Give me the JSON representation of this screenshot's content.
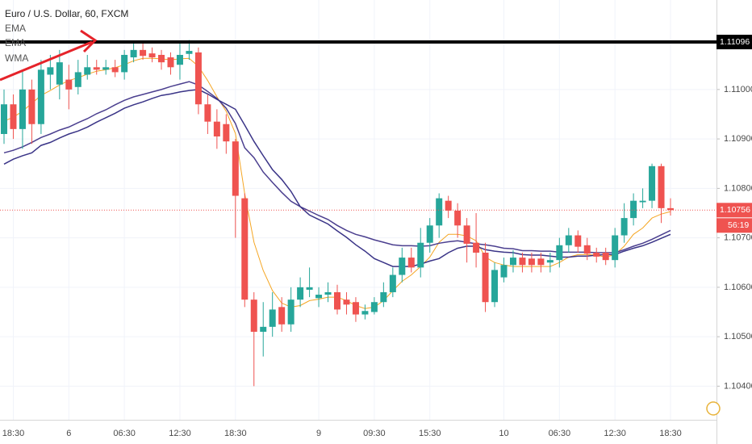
{
  "chart_data": {
    "type": "candlestick",
    "title": "Euro / U.S. Dollar, 60, FXCM",
    "categories": [
      null,
      "18:30",
      null,
      null,
      null,
      null,
      null,
      "6",
      null,
      null,
      null,
      null,
      null,
      "06:30",
      null,
      null,
      null,
      null,
      null,
      "12:30",
      null,
      null,
      null,
      null,
      null,
      "18:30",
      null,
      null,
      null,
      null,
      null,
      null,
      null,
      null,
      "9",
      null,
      null,
      null,
      null,
      null,
      "09:30",
      null,
      null,
      null,
      null,
      null,
      "15:30",
      null,
      null,
      null,
      null,
      null,
      null,
      null,
      "10",
      null,
      null,
      null,
      null,
      null,
      "06:30",
      null,
      null,
      null,
      null,
      null,
      "12:30",
      null,
      null,
      null,
      null,
      null,
      "18:30"
    ],
    "open": [
      1.1091,
      1.1097,
      1.1092,
      1.11,
      1.1093,
      1.1103,
      1.1101,
      1.1102,
      1.11005,
      1.1103,
      1.11045,
      1.1104,
      1.11045,
      1.11035,
      1.11065,
      1.1108,
      1.11073,
      1.1107,
      1.11065,
      1.1105,
      1.11072,
      1.11075,
      1.1097,
      1.10935,
      1.1093,
      1.10895,
      1.1078,
      1.10575,
      1.1051,
      1.1052,
      1.1056,
      1.10525,
      1.10575,
      1.10595,
      1.10578,
      1.10585,
      1.1059,
      1.10575,
      1.1057,
      1.10545,
      1.1055,
      1.1057,
      1.1059,
      1.10625,
      1.1066,
      1.1064,
      1.1069,
      1.10725,
      1.10775,
      1.10755,
      1.10725,
      1.1069,
      1.1067,
      1.1057,
      1.1062,
      1.10645,
      1.1066,
      1.10658,
      1.10658,
      1.1065,
      1.10655,
      1.10685,
      1.10705,
      1.10685,
      1.1067,
      1.1067,
      1.10655,
      1.10705,
      1.1074,
      1.10772,
      1.10775,
      1.10845,
      1.1076
    ],
    "high": [
      1.11,
      1.1099,
      1.1104,
      1.1102,
      1.1106,
      1.1107,
      1.1108,
      1.1105,
      1.1106,
      1.1107,
      1.1106,
      1.1106,
      1.1106,
      1.1108,
      1.11095,
      1.11095,
      1.11085,
      1.1108,
      1.11075,
      1.11095,
      1.111,
      1.11085,
      1.1099,
      1.1096,
      1.1095,
      1.109,
      1.1079,
      1.1059,
      1.1057,
      1.1059,
      1.1058,
      1.106,
      1.1062,
      1.1064,
      1.106,
      1.1061,
      1.10605,
      1.1059,
      1.1058,
      1.10565,
      1.1058,
      1.1061,
      1.1064,
      1.1068,
      1.1068,
      1.1072,
      1.1074,
      1.1079,
      1.10785,
      1.1077,
      1.1074,
      1.1075,
      1.1069,
      1.1065,
      1.1066,
      1.10675,
      1.1067,
      1.1067,
      1.1067,
      1.1067,
      1.107,
      1.1072,
      1.10715,
      1.107,
      1.1068,
      1.1068,
      1.1072,
      1.1077,
      1.1079,
      1.108,
      1.1085,
      1.1085,
      1.1078
    ],
    "low": [
      1.1089,
      1.109,
      1.1088,
      1.1089,
      1.1091,
      1.11,
      1.1098,
      1.1096,
      1.1099,
      1.1102,
      1.1103,
      1.1103,
      1.11025,
      1.1102,
      1.11055,
      1.1106,
      1.11055,
      1.1104,
      1.1103,
      1.1102,
      1.1106,
      1.1095,
      1.1091,
      1.1088,
      1.1087,
      1.107,
      1.1056,
      1.104,
      1.1046,
      1.105,
      1.1051,
      1.1051,
      1.1056,
      1.1058,
      1.1056,
      1.1057,
      1.10545,
      1.10545,
      1.1053,
      1.10535,
      1.10545,
      1.1056,
      1.1058,
      1.1061,
      1.1063,
      1.1062,
      1.1067,
      1.107,
      1.1074,
      1.107,
      1.1065,
      1.1064,
      1.1055,
      1.1056,
      1.1061,
      1.1063,
      1.1063,
      1.1063,
      1.1063,
      1.1063,
      1.1064,
      1.1067,
      1.1067,
      1.10655,
      1.1065,
      1.10645,
      1.1064,
      1.1069,
      1.10725,
      1.1076,
      1.1076,
      1.1073,
      1.10745
    ],
    "close": [
      1.1097,
      1.1092,
      1.11,
      1.1093,
      1.1104,
      1.11045,
      1.11055,
      1.11,
      1.11035,
      1.11045,
      1.1104,
      1.11045,
      1.11035,
      1.1107,
      1.1108,
      1.11068,
      1.11065,
      1.11055,
      1.11045,
      1.1107,
      1.11078,
      1.1097,
      1.10935,
      1.10905,
      1.10895,
      1.10785,
      1.10575,
      1.1051,
      1.1052,
      1.10555,
      1.10525,
      1.10575,
      1.106,
      1.106,
      1.10585,
      1.1059,
      1.10555,
      1.10565,
      1.10545,
      1.10552,
      1.1057,
      1.1059,
      1.10625,
      1.1066,
      1.1064,
      1.1069,
      1.10725,
      1.1078,
      1.10755,
      1.10725,
      1.10688,
      1.1067,
      1.1057,
      1.10635,
      1.10645,
      1.1066,
      1.10645,
      1.10645,
      1.10645,
      1.10655,
      1.10685,
      1.10705,
      1.10682,
      1.10668,
      1.10662,
      1.10655,
      1.10705,
      1.1074,
      1.10775,
      1.10775,
      1.10845,
      1.1076,
      1.10756
    ],
    "up_color": "#26a69a",
    "down_color": "#ef5350",
    "series": [
      {
        "name": "EMA",
        "color": "#f5a623",
        "values": [
          1.10936,
          1.10944,
          1.10956,
          1.10972,
          1.10988,
          1.10998,
          1.11009,
          1.11018,
          1.11024,
          1.11031,
          1.11037,
          1.1104,
          1.11044,
          1.1105,
          1.11058,
          1.11063,
          1.11063,
          1.11062,
          1.1106,
          1.11062,
          1.11063,
          1.11047,
          1.11018,
          1.10985,
          1.10956,
          1.10911,
          1.10789,
          1.10691,
          1.10634,
          1.10593,
          1.10568,
          1.1056,
          1.10563,
          1.10573,
          1.10576,
          1.1058,
          1.1058,
          1.10573,
          1.10563,
          1.10557,
          1.1056,
          1.10573,
          1.10593,
          1.10612,
          1.10625,
          1.10642,
          1.10661,
          1.10691,
          1.10707,
          1.10707,
          1.10704,
          1.10694,
          1.10661,
          1.1065,
          1.10645,
          1.10642,
          1.10642,
          1.10642,
          1.10642,
          1.10642,
          1.1065,
          1.10661,
          1.10666,
          1.10666,
          1.10665,
          1.10661,
          1.10666,
          1.10683,
          1.10707,
          1.1072,
          1.1074,
          1.10748,
          1.10753
        ]
      },
      {
        "name": "EMA",
        "color": "#4b3f8f",
        "values": [
          1.10872,
          1.10877,
          1.10884,
          1.10893,
          1.10903,
          1.1091,
          1.10918,
          1.10924,
          1.10933,
          1.10941,
          1.10951,
          1.10959,
          1.10969,
          1.10978,
          1.10985,
          1.1099,
          1.10995,
          1.11,
          1.11006,
          1.11011,
          1.11016,
          1.11009,
          1.10996,
          1.10982,
          1.10962,
          1.10931,
          1.10882,
          1.10862,
          1.10833,
          1.10812,
          1.10792,
          1.10774,
          1.10763,
          1.10754,
          1.10745,
          1.10737,
          1.10725,
          1.10715,
          1.10707,
          1.10702,
          1.10696,
          1.10691,
          1.10686,
          1.10684,
          1.10684,
          1.10683,
          1.10684,
          1.10689,
          1.10692,
          1.10694,
          1.10691,
          1.10688,
          1.10686,
          1.10683,
          1.10679,
          1.10678,
          1.10674,
          1.10674,
          1.10673,
          1.10673,
          1.10671,
          1.10671,
          1.10671,
          1.10671,
          1.1067,
          1.1067,
          1.1067,
          1.10676,
          1.10683,
          1.10689,
          1.10697,
          1.10706,
          1.10715
        ]
      },
      {
        "name": "WMA",
        "color": "#3a3487",
        "values": [
          1.10849,
          1.10859,
          1.10866,
          1.10872,
          1.10887,
          1.10893,
          1.10902,
          1.1091,
          1.10916,
          1.10924,
          1.10934,
          1.10943,
          1.10952,
          1.10962,
          1.10969,
          1.10975,
          1.10982,
          1.10988,
          1.10991,
          1.10995,
          1.10998,
          1.11,
          1.10991,
          1.1098,
          1.1097,
          1.1096,
          1.10928,
          1.10895,
          1.10866,
          1.10838,
          1.10818,
          1.10794,
          1.10763,
          1.10746,
          1.10737,
          1.10728,
          1.10714,
          1.10701,
          1.10686,
          1.10673,
          1.10658,
          1.1065,
          1.10642,
          1.10642,
          1.10642,
          1.10647,
          1.10653,
          1.10658,
          1.1067,
          1.10679,
          1.10683,
          1.10683,
          1.10676,
          1.10673,
          1.10671,
          1.1067,
          1.10666,
          1.10665,
          1.10665,
          1.10663,
          1.10661,
          1.10661,
          1.10663,
          1.10663,
          1.10665,
          1.10666,
          1.10666,
          1.10673,
          1.10679,
          1.10684,
          1.10691,
          1.10699,
          1.10707
        ]
      }
    ],
    "ylim": [
      1.10332,
      1.11181
    ],
    "yticks": [
      {
        "value": 1.104,
        "label": "1.10400"
      },
      {
        "value": 1.105,
        "label": "1.10500"
      },
      {
        "value": 1.106,
        "label": "1.10600"
      },
      {
        "value": 1.107,
        "label": "1.10700"
      },
      {
        "value": 1.108,
        "label": "1.10800"
      },
      {
        "value": 1.109,
        "label": "1.10900"
      },
      {
        "value": 1.11,
        "label": "1.11000"
      }
    ],
    "grid": true,
    "hline": 1.11096,
    "last_price": 1.10756,
    "countdown": "56:19"
  }
}
